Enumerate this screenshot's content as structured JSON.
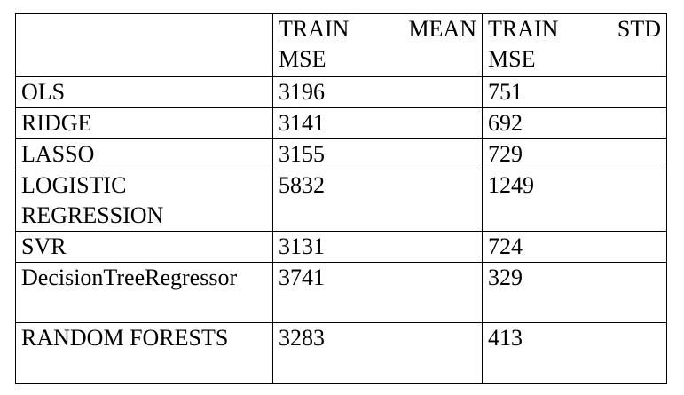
{
  "table": {
    "header": {
      "col1": "",
      "col2_line1_a": "TRAIN",
      "col2_line1_b": "MEAN",
      "col2_line2": "MSE",
      "col3_line1_a": "TRAIN",
      "col3_line1_b": "STD",
      "col3_line2": "MSE"
    },
    "rows": [
      {
        "model": "OLS",
        "mean": "3196",
        "std": "751"
      },
      {
        "model": "RIDGE",
        "mean": "3141",
        "std": "692"
      },
      {
        "model": "LASSO",
        "mean": "3155",
        "std": "729"
      },
      {
        "model": "LOGISTIC REGRESSION",
        "mean": "5832",
        "std": "1249"
      },
      {
        "model": "SVR",
        "mean": "3131",
        "std": "724"
      },
      {
        "model": "DecisionTreeRegressor",
        "mean": "3741",
        "std": "329"
      },
      {
        "model": "RANDOM FORESTS",
        "mean": "3283",
        "std": "413"
      }
    ]
  }
}
